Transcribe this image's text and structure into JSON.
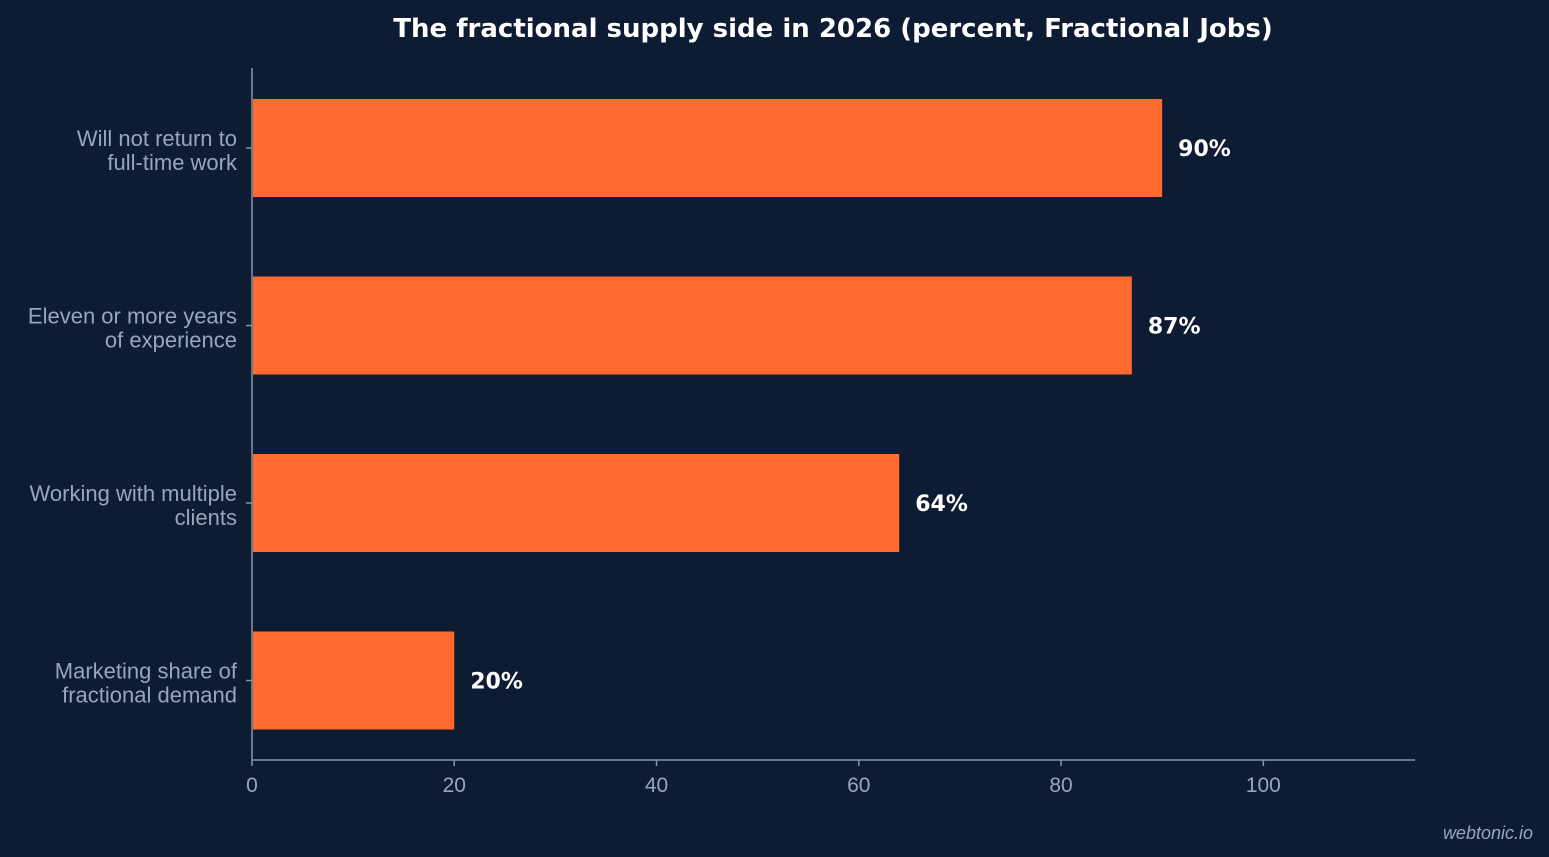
{
  "chart_data": {
    "type": "bar",
    "orientation": "horizontal",
    "title": "The fractional supply side in 2026 (percent, Fractional Jobs)",
    "categories": [
      [
        "Will not return to",
        "full-time work"
      ],
      [
        "Eleven or more years",
        "of experience"
      ],
      [
        "Working with multiple",
        "clients"
      ],
      [
        "Marketing share of",
        "fractional demand"
      ]
    ],
    "values": [
      90,
      87,
      64,
      20
    ],
    "value_labels": [
      "90%",
      "87%",
      "64%",
      "20%"
    ],
    "xticks": [
      "0",
      "20",
      "40",
      "60",
      "80",
      "100"
    ],
    "xtick_values": [
      0,
      20,
      40,
      60,
      80,
      100
    ],
    "xlim": [
      0,
      115
    ],
    "xlabel": "",
    "ylabel": "",
    "grid": false,
    "bar_color": "#ff6b2e"
  },
  "credit": "webtonic.io",
  "colors": {
    "background": "#0d1b33",
    "bar": "#ff6b2e",
    "axis": "#8a96a8",
    "muted_text": "#9aa6b8",
    "title_text": "#ffffff"
  }
}
